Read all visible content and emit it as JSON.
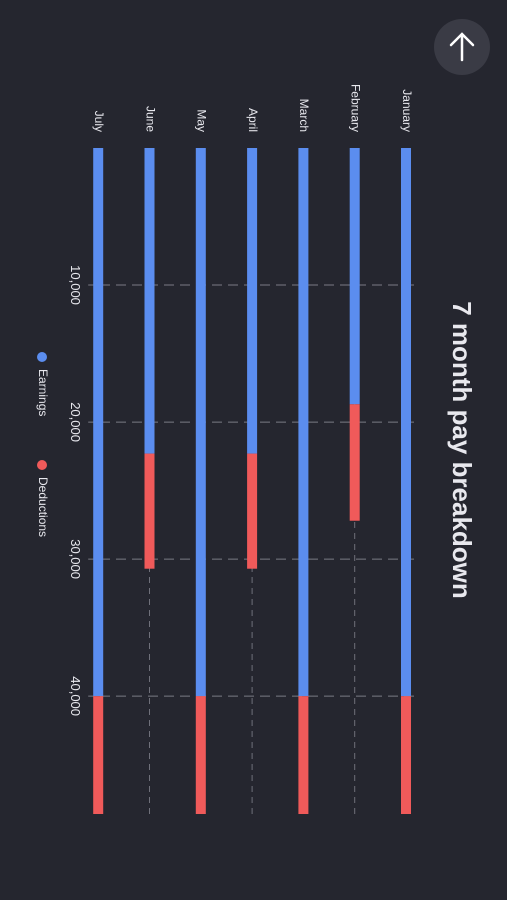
{
  "chart_data": {
    "type": "bar",
    "orientation": "horizontal",
    "stacked": true,
    "title": "7 month pay breakdown",
    "categories": [
      "January",
      "February",
      "March",
      "April",
      "May",
      "June",
      "July"
    ],
    "series": [
      {
        "name": "Earnings",
        "color": "#5b8def",
        "values": [
          40000,
          18700,
          40000,
          22300,
          40000,
          22300,
          40000
        ]
      },
      {
        "name": "Deductions",
        "color": "#f05a5a",
        "values": [
          8600,
          8500,
          8600,
          8400,
          8600,
          8400,
          8600
        ]
      }
    ],
    "xlim": [
      0,
      48600
    ],
    "xticks": [
      {
        "value": 10000,
        "label": "10,000"
      },
      {
        "value": 20000,
        "label": "20,000"
      },
      {
        "value": 30000,
        "label": "30,000"
      },
      {
        "value": 40000,
        "label": "40,000"
      }
    ],
    "grid": true,
    "legend": "bottom"
  }
}
